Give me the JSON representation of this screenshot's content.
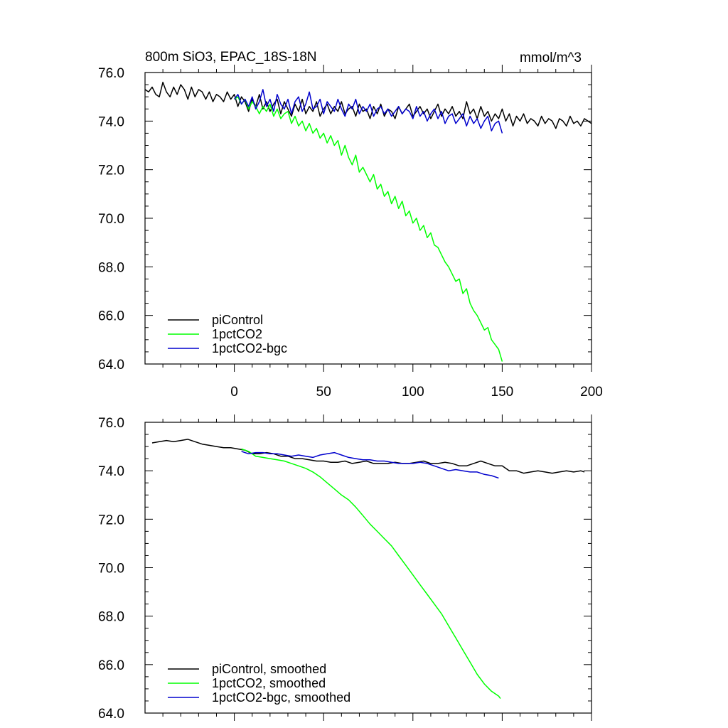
{
  "figure": {
    "title_left": "800m SiO3, EPAC_18S-18N",
    "title_right": "mmol/m^3"
  },
  "chart_data": [
    {
      "type": "line",
      "title": "800m SiO3, EPAC_18S-18N",
      "units": "mmol/m^3",
      "xlim": [
        -50,
        200
      ],
      "ylim": [
        64,
        76
      ],
      "xticks": [
        0,
        50,
        100,
        150,
        200
      ],
      "xtick_labels": [
        "0",
        "50",
        "100",
        "150",
        "200"
      ],
      "yticks": [
        64,
        66,
        68,
        70,
        72,
        74,
        76
      ],
      "ytick_labels": [
        "64.0",
        "66.0",
        "68.0",
        "70.0",
        "72.0",
        "74.0",
        "76.0"
      ],
      "show_xtick_labels": true,
      "grid": false,
      "legend_position": "bottom-left",
      "series": [
        {
          "name": "piControl",
          "color": "#000000",
          "x": [
            -50,
            -48,
            -46,
            -44,
            -42,
            -40,
            -38,
            -36,
            -34,
            -32,
            -30,
            -28,
            -26,
            -24,
            -22,
            -20,
            -18,
            -16,
            -14,
            -12,
            -10,
            -8,
            -6,
            -4,
            -2,
            0,
            2,
            4,
            6,
            8,
            10,
            12,
            14,
            16,
            18,
            20,
            22,
            24,
            26,
            28,
            30,
            32,
            34,
            36,
            38,
            40,
            42,
            44,
            46,
            48,
            50,
            52,
            54,
            56,
            58,
            60,
            62,
            64,
            66,
            68,
            70,
            72,
            74,
            76,
            78,
            80,
            82,
            84,
            86,
            88,
            90,
            92,
            94,
            96,
            98,
            100,
            102,
            104,
            106,
            108,
            110,
            112,
            114,
            116,
            118,
            120,
            122,
            124,
            126,
            128,
            130,
            132,
            134,
            136,
            138,
            140,
            142,
            144,
            146,
            148,
            150,
            152,
            154,
            156,
            158,
            160,
            162,
            164,
            166,
            168,
            170,
            172,
            174,
            176,
            178,
            180,
            182,
            184,
            186,
            188,
            190,
            192,
            194,
            196,
            198,
            200
          ],
          "y": [
            75.3,
            75.2,
            75.4,
            75.1,
            75.0,
            75.6,
            75.2,
            75.0,
            75.4,
            75.1,
            75.5,
            75.3,
            74.9,
            75.4,
            75.0,
            75.3,
            75.2,
            74.9,
            75.2,
            74.8,
            75.1,
            75.0,
            74.8,
            75.2,
            74.9,
            75.1,
            74.6,
            75.0,
            74.8,
            74.4,
            74.9,
            74.6,
            75.1,
            74.5,
            74.8,
            74.4,
            74.7,
            74.9,
            74.3,
            74.8,
            74.5,
            74.2,
            74.7,
            74.4,
            74.9,
            74.3,
            74.6,
            74.4,
            74.8,
            74.2,
            74.5,
            74.7,
            74.3,
            74.6,
            74.4,
            74.8,
            74.3,
            74.5,
            74.6,
            74.2,
            74.7,
            74.4,
            74.5,
            74.1,
            74.6,
            74.3,
            74.7,
            74.2,
            74.5,
            74.4,
            74.1,
            74.6,
            74.3,
            74.5,
            74.7,
            74.2,
            74.4,
            74.6,
            74.3,
            74.5,
            74.1,
            74.4,
            74.7,
            74.2,
            74.5,
            74.3,
            74.6,
            74.2,
            74.4,
            74.1,
            74.8,
            74.3,
            74.5,
            74.1,
            74.6,
            74.2,
            74.4,
            74.0,
            74.3,
            74.1,
            74.5,
            74.0,
            74.3,
            73.8,
            74.2,
            74.0,
            74.3,
            73.9,
            74.1,
            74.0,
            73.8,
            74.2,
            73.9,
            74.1,
            74.0,
            73.7,
            74.1,
            74.0,
            73.8,
            74.2,
            73.9,
            74.0,
            73.8,
            74.1,
            74.0,
            73.9
          ]
        },
        {
          "name": "1pctCO2",
          "color": "#00ff00",
          "x": [
            0,
            2,
            4,
            6,
            8,
            10,
            12,
            14,
            16,
            18,
            20,
            22,
            24,
            26,
            28,
            30,
            32,
            34,
            36,
            38,
            40,
            42,
            44,
            46,
            48,
            50,
            52,
            54,
            56,
            58,
            60,
            62,
            64,
            66,
            68,
            70,
            72,
            74,
            76,
            78,
            80,
            82,
            84,
            86,
            88,
            90,
            92,
            94,
            96,
            98,
            100,
            102,
            104,
            106,
            108,
            110,
            112,
            114,
            116,
            118,
            120,
            122,
            124,
            126,
            128,
            130,
            132,
            134,
            136,
            138,
            140,
            142,
            144,
            146,
            148,
            150
          ],
          "y": [
            74.9,
            75.0,
            74.7,
            74.9,
            74.5,
            74.8,
            74.6,
            74.3,
            74.6,
            74.4,
            74.7,
            74.2,
            74.5,
            74.1,
            74.3,
            74.4,
            73.9,
            74.2,
            73.8,
            74.0,
            73.6,
            73.9,
            73.5,
            73.7,
            73.3,
            73.5,
            73.1,
            73.4,
            73.0,
            73.2,
            72.6,
            73.0,
            72.5,
            72.2,
            72.6,
            71.9,
            72.1,
            71.8,
            71.5,
            71.8,
            71.2,
            71.4,
            70.9,
            71.1,
            70.6,
            70.9,
            70.4,
            70.7,
            70.1,
            70.3,
            69.8,
            70.0,
            69.5,
            69.7,
            69.2,
            69.4,
            68.9,
            68.8,
            68.5,
            68.2,
            68.0,
            67.7,
            67.4,
            67.5,
            66.9,
            67.1,
            66.5,
            66.2,
            66.0,
            65.7,
            65.4,
            65.5,
            65.0,
            64.8,
            64.6,
            64.1
          ]
        },
        {
          "name": "1pctCO2-bgc",
          "color": "#0000cd",
          "x": [
            0,
            2,
            4,
            6,
            8,
            10,
            12,
            14,
            16,
            18,
            20,
            22,
            24,
            26,
            28,
            30,
            32,
            34,
            36,
            38,
            40,
            42,
            44,
            46,
            48,
            50,
            52,
            54,
            56,
            58,
            60,
            62,
            64,
            66,
            68,
            70,
            72,
            74,
            76,
            78,
            80,
            82,
            84,
            86,
            88,
            90,
            92,
            94,
            96,
            98,
            100,
            102,
            104,
            106,
            108,
            110,
            112,
            114,
            116,
            118,
            120,
            122,
            124,
            126,
            128,
            130,
            132,
            134,
            136,
            138,
            140,
            142,
            144,
            146,
            148,
            150
          ],
          "y": [
            74.9,
            75.1,
            74.7,
            74.9,
            74.6,
            75.0,
            74.5,
            74.8,
            75.3,
            74.6,
            74.9,
            74.4,
            75.1,
            74.7,
            74.5,
            74.9,
            74.3,
            74.8,
            75.0,
            74.4,
            74.7,
            75.2,
            74.5,
            74.6,
            74.9,
            74.3,
            74.8,
            74.6,
            74.4,
            74.9,
            74.5,
            74.2,
            74.7,
            74.5,
            74.9,
            74.3,
            74.6,
            74.4,
            74.7,
            74.2,
            74.5,
            74.6,
            74.3,
            74.5,
            74.2,
            74.4,
            74.6,
            74.3,
            74.5,
            74.4,
            74.1,
            74.6,
            74.2,
            74.4,
            74.0,
            74.3,
            74.5,
            74.1,
            74.4,
            73.9,
            74.2,
            74.3,
            73.9,
            74.1,
            74.3,
            73.8,
            74.2,
            73.9,
            74.1,
            73.7,
            74.0,
            74.2,
            73.6,
            73.9,
            74.0,
            73.5
          ]
        }
      ]
    },
    {
      "type": "line",
      "xlim": [
        -50,
        200
      ],
      "ylim": [
        64,
        76
      ],
      "xticks": [
        0,
        50,
        100,
        150,
        200
      ],
      "xtick_labels": [
        "",
        "",
        "",
        "",
        ""
      ],
      "yticks": [
        64,
        66,
        68,
        70,
        72,
        74,
        76
      ],
      "ytick_labels": [
        "64.0",
        "66.0",
        "68.0",
        "70.0",
        "72.0",
        "74.0",
        "76.0"
      ],
      "show_xtick_labels": false,
      "grid": false,
      "legend_position": "bottom-left",
      "series": [
        {
          "name": "piControl, smoothed",
          "color": "#000000",
          "x": [
            -46,
            -42,
            -38,
            -34,
            -30,
            -26,
            -22,
            -18,
            -14,
            -10,
            -6,
            -2,
            2,
            6,
            10,
            14,
            18,
            22,
            26,
            30,
            34,
            38,
            42,
            46,
            50,
            54,
            58,
            62,
            66,
            70,
            74,
            78,
            82,
            86,
            90,
            94,
            98,
            102,
            106,
            110,
            114,
            118,
            122,
            126,
            130,
            134,
            138,
            142,
            146,
            150,
            154,
            158,
            162,
            166,
            170,
            174,
            178,
            182,
            186,
            190,
            194,
            196
          ],
          "y": [
            75.15,
            75.2,
            75.25,
            75.2,
            75.25,
            75.3,
            75.2,
            75.1,
            75.05,
            75.0,
            74.95,
            74.95,
            74.9,
            74.85,
            74.7,
            74.7,
            74.75,
            74.7,
            74.6,
            74.6,
            74.5,
            74.5,
            74.45,
            74.4,
            74.4,
            74.35,
            74.35,
            74.4,
            74.3,
            74.35,
            74.4,
            74.3,
            74.3,
            74.3,
            74.35,
            74.3,
            74.3,
            74.35,
            74.4,
            74.3,
            74.3,
            74.35,
            74.3,
            74.2,
            74.2,
            74.3,
            74.4,
            74.3,
            74.2,
            74.2,
            74.0,
            74.0,
            73.9,
            73.95,
            74.0,
            73.95,
            73.9,
            73.95,
            74.0,
            73.95,
            74.0,
            73.95
          ]
        },
        {
          "name": "1pctCO2, smoothed",
          "color": "#00ff00",
          "x": [
            4,
            8,
            12,
            16,
            20,
            24,
            28,
            32,
            36,
            40,
            44,
            48,
            52,
            56,
            60,
            64,
            68,
            72,
            76,
            80,
            84,
            88,
            92,
            96,
            100,
            104,
            108,
            112,
            116,
            120,
            124,
            128,
            132,
            136,
            140,
            144,
            148,
            149
          ],
          "y": [
            74.9,
            74.8,
            74.6,
            74.55,
            74.5,
            74.45,
            74.4,
            74.3,
            74.2,
            74.1,
            73.95,
            73.75,
            73.5,
            73.25,
            73.0,
            72.8,
            72.5,
            72.15,
            71.8,
            71.5,
            71.2,
            70.9,
            70.5,
            70.1,
            69.7,
            69.3,
            68.9,
            68.5,
            68.1,
            67.6,
            67.1,
            66.6,
            66.1,
            65.6,
            65.2,
            64.9,
            64.7,
            64.6
          ]
        },
        {
          "name": "1pctCO2-bgc, smoothed",
          "color": "#0000cd",
          "x": [
            4,
            8,
            12,
            16,
            20,
            24,
            28,
            32,
            36,
            40,
            44,
            48,
            52,
            56,
            60,
            64,
            68,
            72,
            76,
            80,
            84,
            88,
            92,
            96,
            100,
            104,
            108,
            112,
            116,
            120,
            124,
            128,
            132,
            136,
            140,
            144,
            148
          ],
          "y": [
            74.8,
            74.7,
            74.75,
            74.75,
            74.7,
            74.7,
            74.65,
            74.6,
            74.65,
            74.6,
            74.55,
            74.65,
            74.7,
            74.75,
            74.65,
            74.55,
            74.5,
            74.45,
            74.45,
            74.4,
            74.4,
            74.35,
            74.3,
            74.3,
            74.3,
            74.35,
            74.3,
            74.2,
            74.1,
            74.0,
            74.05,
            74.0,
            73.95,
            73.95,
            73.85,
            73.8,
            73.7
          ]
        }
      ]
    }
  ]
}
